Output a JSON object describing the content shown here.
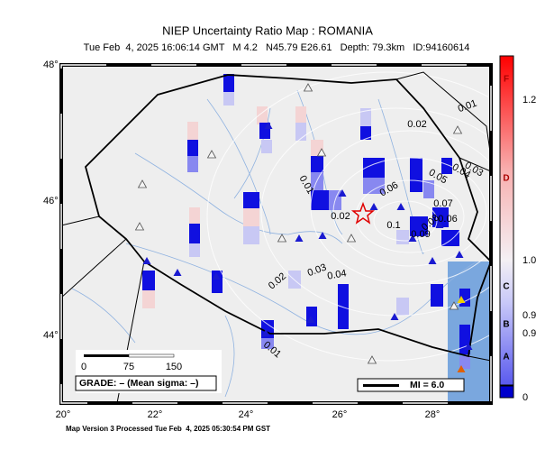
{
  "header": {
    "title": "NIEP Uncertainty Ratio Map : ROMANIA",
    "subtitle": "Tue Feb  4, 2025 16:06:14 GMT   M 4.2   N45.79 E26.61   Depth: 79.3km   ID:94160614"
  },
  "axes": {
    "latitude_labels": [
      "48°",
      "46°",
      "44°"
    ],
    "longitude_labels": [
      "20°",
      "22°",
      "24°",
      "26°",
      "28°"
    ]
  },
  "contour_labels": [
    "0.01",
    "0.02",
    "0.03",
    "0.04",
    "0.05",
    "0.06",
    "0.01",
    "0.07",
    "0.06",
    "0.08",
    "0.09",
    "0.1",
    "0.02",
    "0.02",
    "0.03",
    "0.04",
    "0.01"
  ],
  "scale_bar": {
    "labels": [
      "0",
      "75",
      "150"
    ]
  },
  "grade": "GRADE: – (Mean sigma: –)",
  "mi_legend": "MI = 6.0",
  "colorbar": {
    "grade_letters": [
      "F",
      "D",
      "C",
      "B",
      "A"
    ],
    "values": [
      "1.2",
      "1.0",
      "0.9",
      "0.9",
      "0"
    ]
  },
  "footer": "Map Version 3 Processed Tue Feb  4, 2025 05:30:54 PM GST"
}
